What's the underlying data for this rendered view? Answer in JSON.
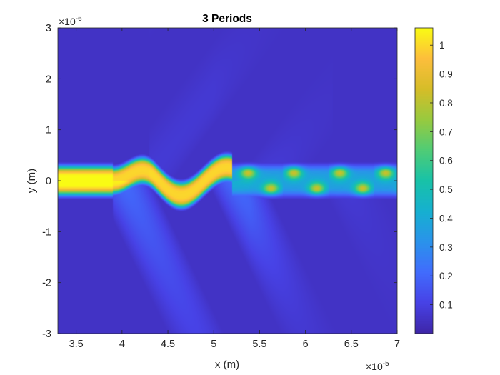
{
  "chart_data": {
    "type": "heatmap",
    "title": "3 Periods",
    "xlabel": "x (m)",
    "ylabel": "y (m)",
    "xlim": [
      3.3,
      7.0
    ],
    "ylim": [
      -3,
      3
    ],
    "x_ticks": [
      3.5,
      4,
      4.5,
      5,
      5.5,
      6,
      6.5,
      7
    ],
    "x_tick_labels": [
      "3.5",
      "4",
      "4.5",
      "5",
      "5.5",
      "6",
      "6.5",
      "7"
    ],
    "x_exponent_base": "×10",
    "x_exponent": "-5",
    "y_ticks": [
      -3,
      -2,
      -1,
      0,
      1,
      2,
      3
    ],
    "y_tick_labels": [
      "-3",
      "-2",
      "-1",
      "0",
      "1",
      "2",
      "3"
    ],
    "y_exponent_base": "×10",
    "y_exponent": "-6",
    "colormap": "parula",
    "colorbar": {
      "clim": [
        0,
        1.06
      ],
      "ticks": [
        0.1,
        0.2,
        0.3,
        0.4,
        0.5,
        0.6,
        0.7,
        0.8,
        0.9,
        1
      ],
      "tick_labels": [
        "0.1",
        "0.2",
        "0.3",
        "0.4",
        "0.5",
        "0.6",
        "0.7",
        "0.8",
        "0.9",
        "1"
      ]
    },
    "field": {
      "input_center_y": 0.0,
      "input_core_width": 0.55,
      "input_end_x": 3.9,
      "wiggle_regions": [
        [
          3.9,
          5.2
        ]
      ],
      "periodic_section": {
        "x_start": 5.25,
        "period": 0.5,
        "upper_y": 0.18,
        "lower_y": -0.18,
        "peak_value": 0.85
      },
      "peak_value": 1.06,
      "background_value": 0.05
    }
  }
}
